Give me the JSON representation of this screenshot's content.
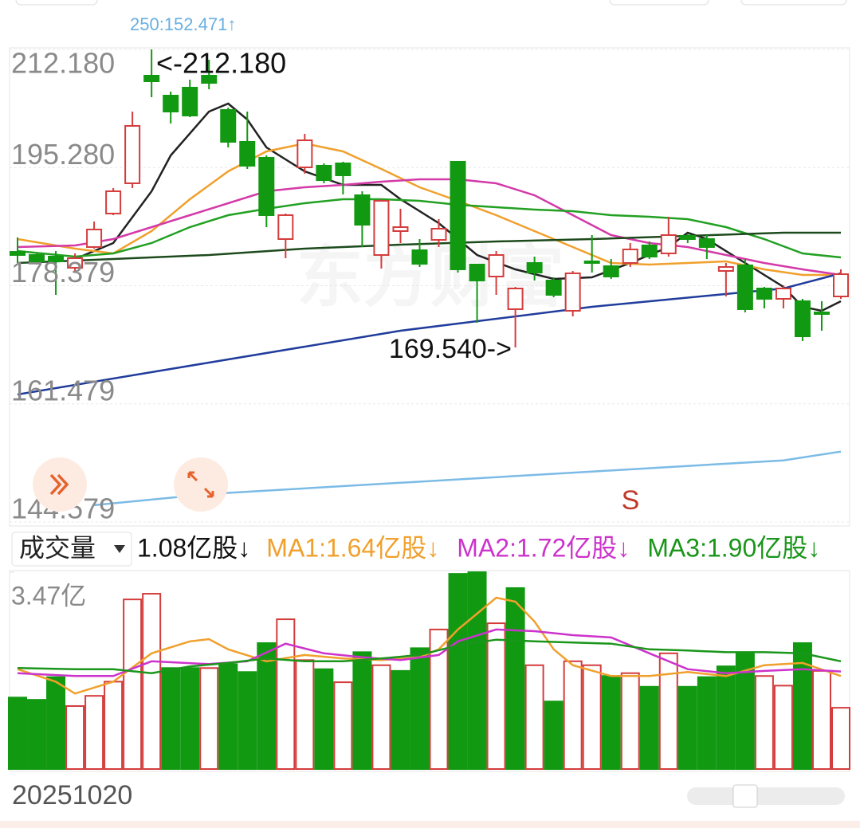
{
  "chart_data": {
    "type": "candlestick",
    "watermark": "东方财富",
    "annotations": {
      "ma250": "250:152.471↑",
      "high": "<-212.180",
      "low": "169.540->",
      "signal": "S"
    },
    "ylim": [
      144.579,
      212.18
    ],
    "yticks": [
      {
        "value": 212.18,
        "label": "212.180"
      },
      {
        "value": 195.28,
        "label": "195.280"
      },
      {
        "value": 178.379,
        "label": "178.379"
      },
      {
        "value": 161.479,
        "label": "161.479"
      },
      {
        "value": 144.579,
        "label": "144.579"
      }
    ],
    "up_color": "#d43c3c",
    "down_color": "#129912",
    "candles": {
      "open": [
        183.22,
        182.77,
        182.54,
        180.94,
        183.91,
        188.7,
        193.03,
        208.42,
        205.57,
        206.71,
        208.42,
        203.52,
        198.96,
        196.68,
        185.05,
        195.31,
        195.54,
        195.88,
        191.32,
        182.77,
        186.19,
        183.45,
        184.93,
        196.11,
        181.4,
        179.69,
        175.02,
        181.63,
        179.12,
        174.79,
        181.86,
        181.17,
        181.63,
        184.14,
        183.0,
        185.5,
        185.05,
        180.49,
        181.29,
        177.98,
        176.5,
        176.16,
        174.56,
        176.84
      ],
      "close": [
        182.77,
        181.86,
        181.86,
        182.31,
        186.42,
        191.89,
        201.24,
        207.62,
        203.29,
        202.72,
        207.39,
        198.96,
        195.54,
        188.47,
        188.47,
        199.18,
        193.48,
        194.17,
        187.1,
        190.52,
        186.76,
        181.51,
        186.53,
        180.72,
        179.12,
        182.77,
        177.98,
        180.26,
        177.07,
        180.15,
        181.63,
        179.69,
        183.57,
        182.54,
        185.62,
        185.05,
        183.91,
        181.06,
        175.02,
        176.5,
        177.98,
        171.14,
        174.33,
        180.03
      ],
      "high": [
        185.28,
        183.0,
        183.34,
        183.0,
        187.56,
        192.34,
        203.29,
        212.18,
        206.14,
        207.85,
        210.7,
        203.86,
        203.29,
        197.02,
        188.7,
        200.1,
        195.88,
        196.11,
        191.89,
        190.75,
        189.38,
        185.05,
        187.9,
        196.11,
        181.4,
        183.34,
        178.21,
        182.54,
        179.58,
        180.49,
        185.62,
        182.2,
        184.48,
        184.71,
        188.24,
        185.85,
        185.62,
        181.63,
        182.2,
        178.21,
        178.44,
        176.5,
        176.16,
        180.72
      ],
      "low": [
        181.63,
        181.4,
        177.07,
        180.49,
        183.68,
        188.47,
        192.34,
        205.34,
        201.58,
        202.49,
        206.48,
        198.16,
        195.08,
        186.76,
        182.31,
        194.4,
        193.03,
        191.43,
        183.91,
        180.83,
        184.48,
        181.06,
        183.91,
        180.26,
        173.08,
        177.07,
        169.54,
        179.12,
        176.73,
        173.99,
        180.26,
        179.35,
        181.06,
        182.2,
        182.54,
        184.48,
        182.2,
        176.84,
        174.56,
        175.13,
        175.13,
        170.46,
        171.94,
        176.5
      ]
    },
    "lines": [
      {
        "color": "#222222",
        "x": [
          3,
          5,
          7,
          8,
          10,
          11,
          12,
          13,
          15,
          17,
          19,
          20,
          22,
          24,
          26,
          28,
          30,
          32,
          34,
          35,
          36,
          38,
          40,
          41,
          42,
          43
        ],
        "values": [
          182.2,
          184.48,
          191.89,
          197.02,
          203.29,
          204.43,
          202.15,
          198.16,
          194.74,
          192.8,
          192.8,
          190.75,
          187.33,
          182.77,
          180.72,
          179.35,
          179.58,
          181.63,
          183.91,
          185.96,
          185.05,
          181.63,
          178.21,
          175.36,
          174.79,
          176.16
        ]
      },
      {
        "color": "#f0a02c",
        "x": [
          0,
          3,
          5,
          7,
          9,
          11,
          13,
          15,
          17,
          19,
          21,
          23,
          25,
          27,
          29,
          31,
          33,
          35,
          37,
          39,
          41,
          43
        ],
        "values": [
          185.05,
          183.68,
          183.0,
          186.19,
          190.75,
          194.74,
          197.59,
          198.73,
          197.59,
          195.08,
          192.46,
          190.52,
          188.47,
          186.19,
          183.91,
          181.63,
          181.4,
          181.63,
          181.86,
          180.72,
          179.92,
          179.92
        ]
      },
      {
        "color": "#d43aa8",
        "x": [
          0,
          3,
          5,
          7,
          9,
          11,
          13,
          15,
          17,
          19,
          21,
          23,
          25,
          27,
          29,
          31,
          33,
          35,
          37,
          39,
          41,
          43
        ],
        "values": [
          183.91,
          184.14,
          185.05,
          186.76,
          188.47,
          190.18,
          191.89,
          192.46,
          192.8,
          193.26,
          193.6,
          193.6,
          193.03,
          191.32,
          188.47,
          185.62,
          184.48,
          183.91,
          182.77,
          181.63,
          180.72,
          179.92
        ]
      },
      {
        "color": "#22a022",
        "x": [
          0,
          3,
          5,
          7,
          9,
          11,
          13,
          15,
          17,
          19,
          21,
          23,
          25,
          27,
          29,
          31,
          33,
          35,
          37,
          39,
          41,
          43
        ],
        "values": [
          183.34,
          182.54,
          183.0,
          184.48,
          186.76,
          188.47,
          189.38,
          190.18,
          190.75,
          190.75,
          190.52,
          189.95,
          189.61,
          189.27,
          189.04,
          188.47,
          188.24,
          187.9,
          186.76,
          185.05,
          183.0,
          182.43
        ]
      },
      {
        "color": "#1d4a1d",
        "x": [
          0,
          5,
          10,
          15,
          20,
          25,
          30,
          35,
          40,
          43
        ],
        "values": [
          181.63,
          182.2,
          182.77,
          183.68,
          184.25,
          184.71,
          185.05,
          185.5,
          185.96,
          185.96
        ]
      },
      {
        "color": "#203c9c",
        "x": [
          0,
          10,
          20,
          30,
          40,
          43
        ],
        "values": [
          162.82,
          167.38,
          171.94,
          175.36,
          177.98,
          180.15
        ]
      },
      {
        "color": "#7bbbe6",
        "x": [
          4,
          10,
          20,
          30,
          40,
          43
        ],
        "values": [
          146.99,
          148.58,
          150.19,
          151.79,
          153.39,
          154.64
        ]
      }
    ],
    "volume": {
      "selector": "成交量",
      "current": "1.08亿股↓",
      "ylim": [
        0,
        3.47
      ],
      "yticks": [
        {
          "value": 3.47,
          "label": "3.47亿"
        }
      ],
      "values": [
        1.26,
        1.22,
        1.62,
        1.11,
        1.29,
        1.54,
        2.99,
        3.09,
        1.78,
        1.78,
        1.78,
        1.85,
        1.71,
        2.22,
        2.64,
        1.92,
        1.76,
        1.53,
        2.06,
        1.83,
        1.73,
        2.13,
        2.46,
        3.44,
        3.47,
        2.57,
        3.19,
        1.83,
        1.19,
        1.9,
        1.83,
        1.64,
        1.69,
        1.45,
        2.04,
        1.45,
        1.62,
        1.81,
        2.04,
        1.64,
        1.47,
        2.22,
        1.73,
        1.08
      ],
      "hollow": [
        false,
        false,
        false,
        true,
        true,
        true,
        true,
        true,
        false,
        false,
        true,
        false,
        false,
        false,
        true,
        true,
        false,
        true,
        false,
        true,
        false,
        false,
        true,
        false,
        false,
        true,
        false,
        true,
        false,
        true,
        true,
        false,
        true,
        false,
        true,
        false,
        false,
        false,
        false,
        true,
        true,
        false,
        true,
        true
      ],
      "series": [
        {
          "name": "MA1:1.64亿股↓",
          "color": "#f0a02c",
          "x": [
            0,
            2,
            3,
            5,
            7,
            9,
            10,
            11,
            13,
            15,
            17,
            19,
            21,
            22,
            23,
            24,
            25,
            26,
            27,
            28,
            29,
            31,
            33,
            35,
            37,
            39,
            41,
            43
          ],
          "values": [
            1.76,
            1.54,
            1.33,
            1.54,
            2.04,
            2.25,
            2.29,
            2.11,
            1.9,
            2.01,
            1.95,
            1.92,
            1.97,
            2.11,
            2.46,
            2.74,
            3.02,
            2.95,
            2.6,
            2.11,
            1.83,
            1.64,
            1.64,
            1.71,
            1.64,
            1.83,
            1.87,
            1.64
          ]
        },
        {
          "name": "MA2:1.72亿股↓",
          "color": "#cc33cc",
          "x": [
            0,
            3,
            5,
            7,
            10,
            12,
            14,
            16,
            18,
            20,
            22,
            23,
            25,
            27,
            29,
            31,
            33,
            35,
            37,
            39,
            41,
            43
          ],
          "values": [
            1.69,
            1.64,
            1.64,
            1.9,
            1.85,
            1.9,
            2.21,
            2.04,
            1.97,
            1.92,
            2.01,
            2.25,
            2.46,
            2.43,
            2.36,
            2.32,
            2.04,
            1.76,
            1.69,
            1.73,
            1.76,
            1.72
          ]
        },
        {
          "name": "MA3:1.90亿股↓",
          "color": "#1a961a",
          "x": [
            0,
            3,
            5,
            7,
            9,
            11,
            13,
            15,
            17,
            19,
            21,
            23,
            25,
            27,
            29,
            31,
            33,
            35,
            37,
            39,
            41,
            43
          ],
          "values": [
            1.78,
            1.76,
            1.76,
            1.69,
            1.81,
            1.87,
            1.95,
            1.9,
            1.9,
            1.95,
            2.01,
            2.18,
            2.28,
            2.25,
            2.23,
            2.21,
            2.11,
            2.09,
            2.06,
            2.06,
            2.04,
            1.9
          ]
        }
      ]
    },
    "date": "20251020"
  }
}
